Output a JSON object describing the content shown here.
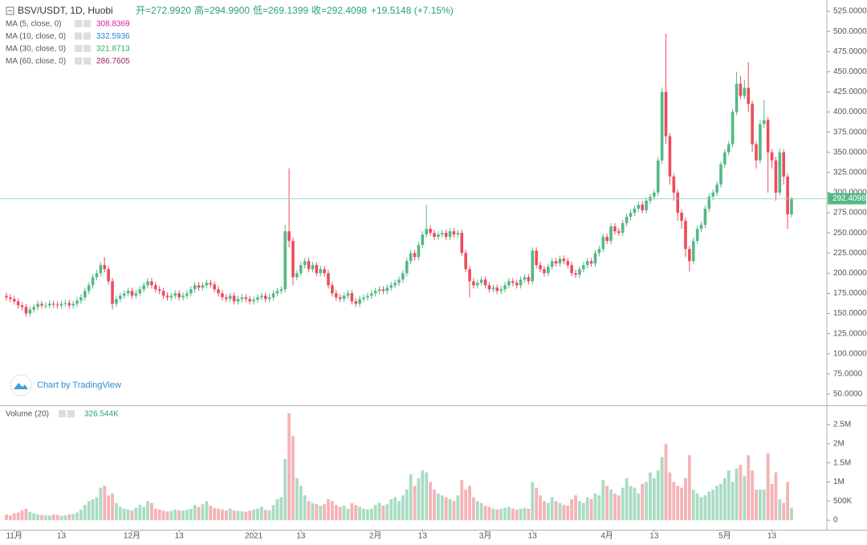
{
  "chart_data": [
    {
      "type": "candlestick",
      "title": "BSV/USDT, 1D, Huobi",
      "header": [
        "开=272.9920",
        "高=294.9900",
        "低=269.1399",
        "收=292.4098"
      ],
      "change": "+19.5148 (+7.15%)",
      "watermark": "Chart by TradingView",
      "up_color": "#53b987",
      "down_color": "#eb4d5c",
      "grid": false,
      "indicators": [
        {
          "name": "MA (5, close, 0)",
          "value": 308.8369,
          "color": "#d21ea0"
        },
        {
          "name": "MA (10, close, 0)",
          "value": 332.5936,
          "color": "#2f7ed8"
        },
        {
          "name": "MA (30, close, 0)",
          "value": 321.8713,
          "color": "#26b05a"
        },
        {
          "name": "MA (60, close, 0)",
          "value": 286.7605,
          "color": "#a0226b"
        }
      ],
      "categories": [
        null,
        null,
        "11月",
        null,
        null,
        null,
        null,
        null,
        null,
        null,
        null,
        null,
        null,
        null,
        "13",
        null,
        null,
        null,
        null,
        null,
        null,
        null,
        null,
        null,
        null,
        null,
        null,
        null,
        null,
        null,
        null,
        null,
        "12月",
        null,
        null,
        null,
        null,
        null,
        null,
        null,
        null,
        null,
        null,
        null,
        "13",
        null,
        null,
        null,
        null,
        null,
        null,
        null,
        null,
        null,
        null,
        null,
        null,
        null,
        null,
        null,
        null,
        null,
        null,
        "2021",
        null,
        null,
        null,
        null,
        null,
        null,
        null,
        null,
        null,
        null,
        null,
        "13",
        null,
        null,
        null,
        null,
        null,
        null,
        null,
        null,
        null,
        null,
        null,
        null,
        null,
        null,
        null,
        null,
        null,
        null,
        "2月",
        null,
        null,
        null,
        null,
        null,
        null,
        null,
        null,
        null,
        null,
        null,
        "13",
        null,
        null,
        null,
        null,
        null,
        null,
        null,
        null,
        null,
        null,
        null,
        null,
        null,
        null,
        null,
        "3月",
        null,
        null,
        null,
        null,
        null,
        null,
        null,
        null,
        null,
        null,
        null,
        "13",
        null,
        null,
        null,
        null,
        null,
        null,
        null,
        null,
        null,
        null,
        null,
        null,
        null,
        null,
        null,
        null,
        null,
        null,
        "4月",
        null,
        null,
        null,
        null,
        null,
        null,
        null,
        null,
        null,
        null,
        null,
        "13",
        null,
        null,
        null,
        null,
        null,
        null,
        null,
        null,
        null,
        null,
        null,
        null,
        null,
        null,
        null,
        null,
        null,
        "5月",
        null,
        null,
        null,
        null,
        null,
        null,
        null,
        null,
        null,
        null,
        null,
        "13",
        null,
        null,
        null,
        null,
        null
      ],
      "open": [
        172,
        170,
        168,
        165,
        160,
        158,
        150,
        155,
        158,
        162,
        160,
        160,
        162,
        161,
        160,
        162,
        163,
        160,
        162,
        166,
        170,
        178,
        185,
        195,
        200,
        210,
        205,
        190,
        162,
        168,
        172,
        175,
        178,
        172,
        175,
        180,
        185,
        190,
        185,
        180,
        178,
        172,
        170,
        172,
        175,
        170,
        172,
        175,
        180,
        185,
        182,
        185,
        188,
        186,
        180,
        175,
        170,
        168,
        172,
        165,
        168,
        170,
        168,
        165,
        167,
        170,
        172,
        168,
        170,
        175,
        178,
        180,
        252,
        240,
        195,
        200,
        210,
        215,
        205,
        210,
        200,
        205,
        200,
        185,
        175,
        170,
        168,
        172,
        175,
        165,
        162,
        168,
        170,
        172,
        175,
        178,
        180,
        178,
        182,
        185,
        188,
        192,
        200,
        215,
        225,
        220,
        235,
        248,
        255,
        250,
        245,
        248,
        250,
        245,
        252,
        248,
        250,
        225,
        205,
        190,
        185,
        188,
        192,
        185,
        180,
        182,
        178,
        180,
        185,
        190,
        188,
        185,
        192,
        195,
        190,
        228,
        210,
        205,
        200,
        208,
        215,
        212,
        218,
        215,
        210,
        200,
        198,
        205,
        210,
        215,
        212,
        225,
        230,
        245,
        240,
        258,
        252,
        250,
        262,
        270,
        275,
        280,
        285,
        278,
        290,
        295,
        300,
        340,
        425,
        370,
        320,
        300,
        275,
        265,
        230,
        215,
        240,
        255,
        260,
        280,
        295,
        300,
        310,
        335,
        350,
        360,
        400,
        435,
        420,
        430,
        410,
        360,
        340,
        385,
        390,
        350,
        340,
        300,
        350,
        320,
        272.992
      ],
      "high": [
        176,
        174,
        172,
        169,
        164,
        162,
        159,
        162,
        166,
        166,
        164,
        166,
        166,
        165,
        166,
        167,
        167,
        166,
        170,
        174,
        182,
        189,
        199,
        204,
        214,
        220,
        209,
        194,
        172,
        176,
        179,
        182,
        182,
        179,
        184,
        189,
        194,
        194,
        189,
        184,
        182,
        176,
        176,
        179,
        179,
        176,
        179,
        184,
        189,
        189,
        189,
        192,
        192,
        190,
        184,
        179,
        174,
        176,
        176,
        172,
        174,
        174,
        172,
        171,
        174,
        176,
        176,
        174,
        179,
        182,
        184,
        260,
        330,
        244,
        204,
        214,
        219,
        219,
        214,
        214,
        209,
        209,
        204,
        189,
        179,
        174,
        176,
        179,
        179,
        169,
        172,
        174,
        176,
        179,
        182,
        184,
        184,
        186,
        189,
        192,
        196,
        204,
        219,
        229,
        229,
        239,
        252,
        285,
        259,
        254,
        252,
        254,
        254,
        256,
        256,
        254,
        254,
        229,
        209,
        194,
        192,
        196,
        196,
        189,
        186,
        186,
        184,
        189,
        194,
        194,
        192,
        196,
        199,
        199,
        232,
        232,
        214,
        209,
        212,
        219,
        219,
        222,
        222,
        219,
        214,
        204,
        209,
        214,
        219,
        219,
        229,
        234,
        249,
        249,
        262,
        262,
        256,
        266,
        274,
        279,
        284,
        289,
        289,
        294,
        299,
        304,
        344,
        430,
        497,
        374,
        324,
        304,
        279,
        269,
        234,
        244,
        259,
        264,
        284,
        299,
        304,
        314,
        339,
        354,
        364,
        404,
        450,
        445,
        440,
        462,
        414,
        364,
        390,
        415,
        394,
        354,
        344,
        355,
        354,
        324,
        294.99
      ],
      "low": [
        166,
        164,
        161,
        156,
        154,
        146,
        146,
        151,
        154,
        156,
        156,
        156,
        157,
        156,
        156,
        158,
        156,
        156,
        158,
        162,
        166,
        174,
        181,
        191,
        196,
        201,
        186,
        155,
        158,
        164,
        168,
        171,
        168,
        168,
        171,
        176,
        181,
        181,
        176,
        174,
        168,
        166,
        166,
        168,
        166,
        166,
        168,
        171,
        176,
        178,
        178,
        181,
        182,
        176,
        171,
        166,
        164,
        164,
        161,
        161,
        164,
        164,
        161,
        161,
        163,
        166,
        164,
        164,
        166,
        171,
        174,
        176,
        232,
        185,
        191,
        196,
        206,
        201,
        201,
        196,
        196,
        196,
        181,
        171,
        166,
        164,
        164,
        168,
        161,
        158,
        158,
        164,
        166,
        168,
        171,
        174,
        174,
        174,
        178,
        181,
        184,
        188,
        196,
        211,
        216,
        216,
        231,
        244,
        246,
        241,
        241,
        244,
        241,
        241,
        244,
        244,
        221,
        201,
        170,
        181,
        181,
        184,
        181,
        176,
        176,
        174,
        174,
        176,
        181,
        184,
        181,
        181,
        188,
        186,
        186,
        206,
        201,
        196,
        196,
        204,
        208,
        208,
        211,
        206,
        196,
        194,
        194,
        201,
        206,
        208,
        208,
        221,
        226,
        236,
        236,
        248,
        246,
        246,
        258,
        266,
        271,
        276,
        274,
        274,
        286,
        291,
        296,
        336,
        360,
        310,
        290,
        265,
        255,
        220,
        202,
        211,
        236,
        251,
        256,
        276,
        291,
        296,
        306,
        331,
        346,
        356,
        396,
        416,
        416,
        400,
        350,
        330,
        336,
        380,
        300,
        330,
        290,
        296,
        310,
        255,
        269.1399
      ],
      "close": [
        170,
        168,
        165,
        160,
        158,
        150,
        155,
        158,
        162,
        160,
        160,
        162,
        161,
        160,
        162,
        163,
        160,
        162,
        166,
        170,
        178,
        185,
        195,
        200,
        210,
        205,
        190,
        162,
        168,
        172,
        175,
        178,
        172,
        175,
        180,
        185,
        190,
        185,
        180,
        178,
        172,
        170,
        172,
        175,
        170,
        172,
        175,
        180,
        185,
        182,
        185,
        188,
        186,
        180,
        175,
        170,
        168,
        172,
        165,
        168,
        170,
        168,
        165,
        167,
        170,
        172,
        168,
        170,
        175,
        178,
        180,
        252,
        240,
        195,
        200,
        210,
        215,
        205,
        210,
        200,
        205,
        200,
        185,
        175,
        170,
        168,
        172,
        175,
        165,
        162,
        168,
        170,
        172,
        175,
        178,
        180,
        178,
        182,
        185,
        188,
        192,
        200,
        215,
        225,
        220,
        235,
        248,
        255,
        250,
        245,
        248,
        250,
        245,
        252,
        248,
        250,
        225,
        205,
        190,
        185,
        188,
        192,
        185,
        180,
        182,
        178,
        180,
        185,
        190,
        188,
        185,
        192,
        195,
        190,
        228,
        210,
        205,
        200,
        208,
        215,
        212,
        218,
        215,
        210,
        200,
        198,
        205,
        210,
        215,
        212,
        225,
        230,
        245,
        240,
        258,
        252,
        250,
        262,
        270,
        275,
        280,
        285,
        278,
        290,
        295,
        300,
        340,
        425,
        370,
        320,
        300,
        275,
        265,
        230,
        215,
        240,
        255,
        260,
        280,
        295,
        300,
        310,
        335,
        350,
        360,
        400,
        435,
        420,
        430,
        410,
        360,
        340,
        385,
        390,
        350,
        340,
        300,
        350,
        320,
        273,
        292.4098
      ],
      "ylim": [
        36,
        539
      ],
      "yticks": [
        {
          "value": 525,
          "label": "525.0000"
        },
        {
          "value": 500,
          "label": "500.0000"
        },
        {
          "value": 475,
          "label": "475.0000"
        },
        {
          "value": 450,
          "label": "450.0000"
        },
        {
          "value": 425,
          "label": "425.0000"
        },
        {
          "value": 400,
          "label": "400.0000"
        },
        {
          "value": 375,
          "label": "375.0000"
        },
        {
          "value": 350,
          "label": "350.0000"
        },
        {
          "value": 325,
          "label": "325.0000"
        },
        {
          "value": 300,
          "label": "300.0000"
        },
        {
          "value": 275,
          "label": "275.0000"
        },
        {
          "value": 250,
          "label": "250.0000"
        },
        {
          "value": 225,
          "label": "225.0000"
        },
        {
          "value": 200,
          "label": "200.0000"
        },
        {
          "value": 175,
          "label": "175.0000"
        },
        {
          "value": 150,
          "label": "150.0000"
        },
        {
          "value": 125,
          "label": "125.0000"
        },
        {
          "value": 100,
          "label": "100.0000"
        },
        {
          "value": 75,
          "label": "75.0000"
        },
        {
          "value": 50,
          "label": "50.0000"
        }
      ]
    },
    {
      "type": "bar",
      "title": "Volume (20)",
      "value_label": "326.544K",
      "up_color": "#a9dcc4",
      "down_color": "#f5b3b6",
      "values": [
        150000,
        120000,
        180000,
        200000,
        260000,
        300000,
        220000,
        180000,
        150000,
        140000,
        130000,
        120000,
        150000,
        140000,
        110000,
        130000,
        150000,
        160000,
        200000,
        280000,
        400000,
        500000,
        550000,
        600000,
        850000,
        900000,
        650000,
        700000,
        450000,
        350000,
        300000,
        280000,
        250000,
        320000,
        400000,
        350000,
        500000,
        450000,
        300000,
        280000,
        250000,
        230000,
        240000,
        280000,
        260000,
        250000,
        270000,
        300000,
        400000,
        350000,
        420000,
        500000,
        380000,
        320000,
        300000,
        280000,
        260000,
        300000,
        250000,
        240000,
        230000,
        220000,
        250000,
        280000,
        300000,
        350000,
        270000,
        260000,
        400000,
        550000,
        600000,
        1600000,
        2800000,
        2200000,
        1100000,
        900000,
        650000,
        500000,
        450000,
        420000,
        380000,
        420000,
        550000,
        500000,
        400000,
        350000,
        380000,
        300000,
        450000,
        400000,
        350000,
        300000,
        280000,
        300000,
        400000,
        450000,
        380000,
        420000,
        550000,
        600000,
        500000,
        650000,
        800000,
        1200000,
        900000,
        1100000,
        1300000,
        1250000,
        1000000,
        800000,
        700000,
        650000,
        600000,
        550000,
        500000,
        650000,
        1050000,
        800000,
        900000,
        600000,
        500000,
        450000,
        380000,
        350000,
        300000,
        280000,
        300000,
        320000,
        350000,
        300000,
        280000,
        300000,
        320000,
        300000,
        1000000,
        850000,
        650000,
        500000,
        450000,
        600000,
        500000,
        450000,
        400000,
        380000,
        550000,
        650000,
        500000,
        450000,
        600000,
        550000,
        700000,
        650000,
        1050000,
        900000,
        800000,
        700000,
        650000,
        850000,
        1100000,
        900000,
        850000,
        700000,
        950000,
        1000000,
        1250000,
        1100000,
        1300000,
        1650000,
        2000000,
        1250000,
        1000000,
        900000,
        850000,
        1100000,
        1700000,
        800000,
        700000,
        600000,
        650000,
        750000,
        800000,
        900000,
        950000,
        1100000,
        1300000,
        1000000,
        1350000,
        1450000,
        1150000,
        1700000,
        1300000,
        800000,
        800000,
        800000,
        1750000,
        950000,
        1250000,
        550000,
        450000,
        1000000,
        326544
      ],
      "ylim": [
        -250000,
        2900000
      ],
      "yticks": [
        {
          "value": 2500000,
          "label": "2.5M"
        },
        {
          "value": 2000000,
          "label": "2M"
        },
        {
          "value": 1500000,
          "label": "1.5M"
        },
        {
          "value": 1000000,
          "label": "1M"
        },
        {
          "value": 500000,
          "label": "500K"
        },
        0
      ]
    }
  ]
}
